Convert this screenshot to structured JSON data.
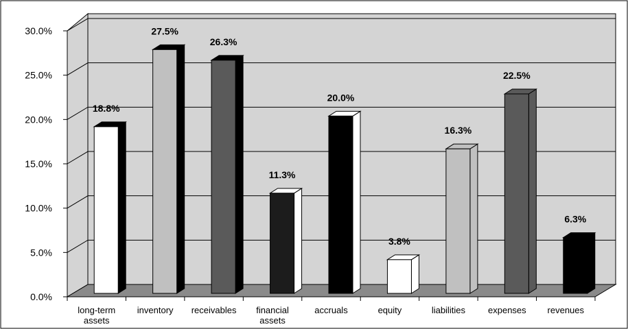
{
  "chart_data": {
    "type": "bar",
    "title": "",
    "xlabel": "",
    "ylabel": "",
    "ylim": [
      0,
      30
    ],
    "y_ticks": [
      "0.0%",
      "5.0%",
      "10.0%",
      "15.0%",
      "20.0%",
      "25.0%",
      "30.0%"
    ],
    "y_tick_values": [
      0,
      5,
      10,
      15,
      20,
      25,
      30
    ],
    "grid": true,
    "legend": "none",
    "categories": [
      [
        "long-term",
        "assets"
      ],
      [
        "inventory"
      ],
      [
        "receivables"
      ],
      [
        "financial",
        "assets"
      ],
      [
        "accruals"
      ],
      [
        "equity"
      ],
      [
        "liabilities"
      ],
      [
        "expenses"
      ],
      [
        "revenues"
      ]
    ],
    "values": [
      18.8,
      27.5,
      26.3,
      11.3,
      20.0,
      3.8,
      16.3,
      22.5,
      6.3
    ],
    "labels": [
      "18.8%",
      "27.5%",
      "26.3%",
      "11.3%",
      "20.0%",
      "3.8%",
      "16.3%",
      "22.5%",
      "6.3%"
    ],
    "bar_colors": [
      {
        "front": "#ffffff",
        "side": "#000000",
        "top": "#000000"
      },
      {
        "front": "#c0c0c0",
        "side": "#000000",
        "top": "#000000"
      },
      {
        "front": "#5a5a5a",
        "side": "#000000",
        "top": "#000000"
      },
      {
        "front": "#1c1c1c",
        "side": "#ffffff",
        "top": "#ffffff"
      },
      {
        "front": "#000000",
        "side": "#ffffff",
        "top": "#ffffff"
      },
      {
        "front": "#ffffff",
        "side": "#ffffff",
        "top": "#ffffff"
      },
      {
        "front": "#c0c0c0",
        "side": "#c0c0c0",
        "top": "#c0c0c0"
      },
      {
        "front": "#5a5a5a",
        "side": "#5a5a5a",
        "top": "#5a5a5a"
      },
      {
        "front": "#000000",
        "side": "#000000",
        "top": "#000000"
      }
    ],
    "colors": {
      "wall": "#d4d4d4",
      "floor": "#8a8a8a",
      "gridline": "#000000",
      "outline": "#000000"
    }
  }
}
